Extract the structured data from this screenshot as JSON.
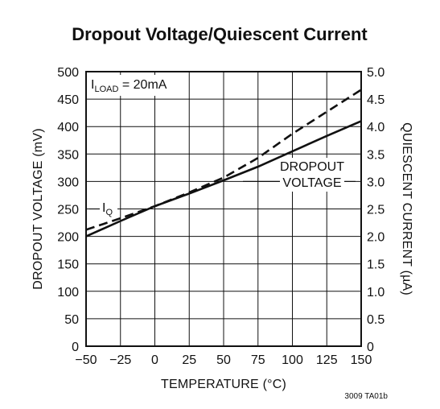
{
  "chart_data": {
    "type": "line",
    "title": "Dropout Voltage/Quiescent Current",
    "xlabel": "TEMPERATURE (°C)",
    "ylabel_left": "DROPOUT VOLTAGE (mV)",
    "ylabel_right": "QUIESCENT CURRENT (µA)",
    "xlim": [
      -50,
      150
    ],
    "ylim_left": [
      0,
      500
    ],
    "ylim_right": [
      0,
      5.0
    ],
    "xticks": [
      -50,
      -25,
      0,
      25,
      50,
      75,
      100,
      125,
      150
    ],
    "xtick_labels": [
      "−50",
      "−25",
      "0",
      "25",
      "50",
      "75",
      "100",
      "125",
      "150"
    ],
    "yticks_left": [
      0,
      50,
      100,
      150,
      200,
      250,
      300,
      350,
      400,
      450,
      500
    ],
    "ytick_labels_left": [
      "0",
      "50",
      "100",
      "150",
      "200",
      "250",
      "300",
      "350",
      "400",
      "450",
      "500"
    ],
    "yticks_right": [
      0,
      0.5,
      1.0,
      1.5,
      2.0,
      2.5,
      3.0,
      3.5,
      4.0,
      4.5,
      5.0
    ],
    "ytick_labels_right": [
      "0",
      "0.5",
      "1.0",
      "1.5",
      "2.0",
      "2.5",
      "3.0",
      "3.5",
      "4.0",
      "4.5",
      "5.0"
    ],
    "grid": true,
    "annotation_load": {
      "main": "I",
      "sub": "LOAD",
      "rest": " = 20mA"
    },
    "annotation_iq": {
      "main": "I",
      "sub": "Q"
    },
    "annotation_dropout": [
      "DROPOUT",
      "VOLTAGE"
    ],
    "series": [
      {
        "axis": "left",
        "style": "solid",
        "x": [
          -50,
          -25,
          0,
          25,
          50,
          75,
          100,
          125,
          150
        ],
        "y": [
          200,
          228,
          255,
          278,
          302,
          327,
          355,
          383,
          410
        ]
      },
      {
        "axis": "right",
        "style": "dashed",
        "x": [
          -50,
          -25,
          0,
          25,
          50,
          75,
          100,
          125,
          150
        ],
        "y": [
          2.12,
          2.33,
          2.55,
          2.8,
          3.07,
          3.43,
          3.87,
          4.27,
          4.67
        ]
      }
    ],
    "figure_code": "3009 TA01b"
  }
}
